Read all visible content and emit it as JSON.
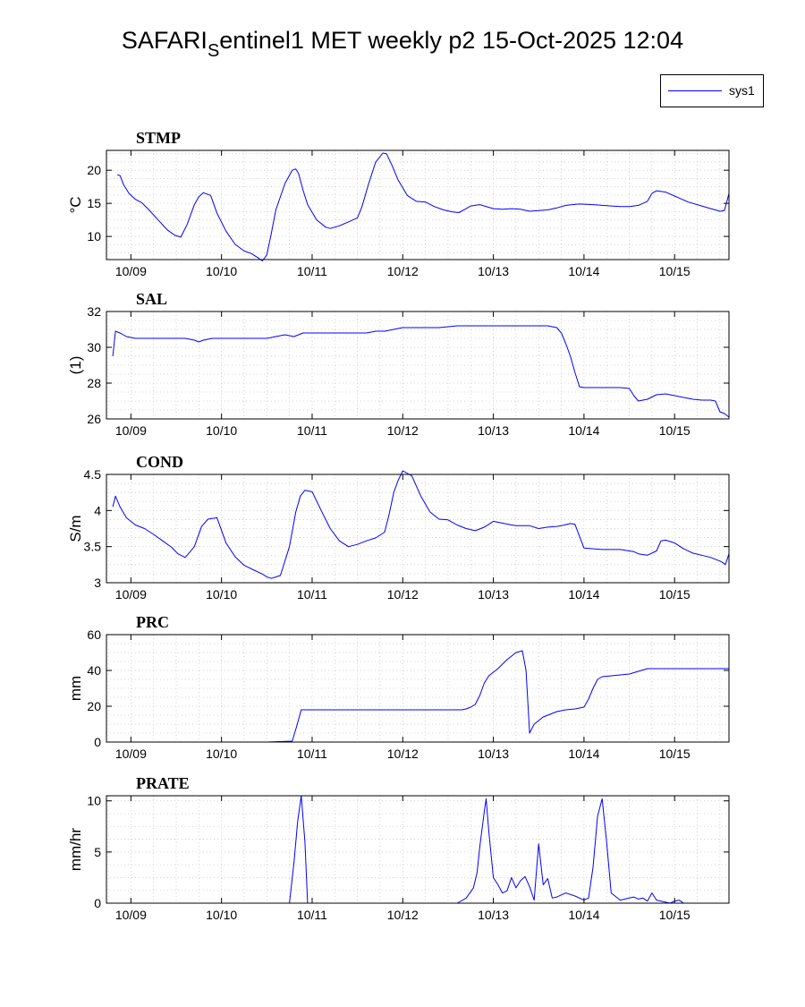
{
  "figure": {
    "title_prefix": "SAFARI",
    "title_sub": "S",
    "title_suffix": "entinel1 MET weekly p2 15-Oct-2025 12:04",
    "legend_label": "sys1",
    "line_color": "#0000ff"
  },
  "chart_data": [
    {
      "type": "line",
      "title": "STMP",
      "ylabel": "°C",
      "xlim": [
        -0.27,
        6.6
      ],
      "ylim": [
        6.5,
        23
      ],
      "yticks": [
        10,
        15,
        20
      ],
      "ytick_labels": [
        "10",
        "15",
        "20"
      ],
      "xticks": [
        0,
        1,
        2,
        3,
        4,
        5,
        6
      ],
      "xtick_labels": [
        "10/09",
        "10/10",
        "10/11",
        "10/12",
        "10/13",
        "10/14",
        "10/15"
      ],
      "grid": true,
      "series": [
        {
          "name": "sys1",
          "x": [
            -0.15,
            -0.12,
            -0.08,
            -0.02,
            0.05,
            0.12,
            0.2,
            0.3,
            0.4,
            0.48,
            0.55,
            0.62,
            0.7,
            0.75,
            0.8,
            0.88,
            0.95,
            1.05,
            1.15,
            1.25,
            1.33,
            1.4,
            1.45,
            1.5,
            1.55,
            1.6,
            1.7,
            1.78,
            1.82,
            1.85,
            1.9,
            1.95,
            2.05,
            2.15,
            2.2,
            2.3,
            2.4,
            2.5,
            2.55,
            2.62,
            2.7,
            2.78,
            2.82,
            2.88,
            2.95,
            3.05,
            3.15,
            3.25,
            3.35,
            3.45,
            3.55,
            3.62,
            3.7,
            3.75,
            3.85,
            4.0,
            4.1,
            4.2,
            4.3,
            4.4,
            4.5,
            4.6,
            4.7,
            4.8,
            4.95,
            5.1,
            5.2,
            5.3,
            5.4,
            5.5,
            5.6,
            5.65,
            5.7,
            5.75,
            5.8,
            5.9,
            6.0,
            6.15,
            6.3,
            6.4,
            6.45,
            6.5,
            6.55,
            6.6
          ],
          "y": [
            19.3,
            19.2,
            17.8,
            16.5,
            15.6,
            15.1,
            14.0,
            12.5,
            11.0,
            10.2,
            9.9,
            11.8,
            14.8,
            16.0,
            16.6,
            16.2,
            13.5,
            10.8,
            8.8,
            7.8,
            7.4,
            6.8,
            6.3,
            7.2,
            10.5,
            14.0,
            18.0,
            20.0,
            20.2,
            19.5,
            17.0,
            14.8,
            12.5,
            11.4,
            11.2,
            11.6,
            12.2,
            12.8,
            14.5,
            17.8,
            21.2,
            22.6,
            22.5,
            20.8,
            18.5,
            16.2,
            15.3,
            15.2,
            14.5,
            14.0,
            13.7,
            13.6,
            14.2,
            14.6,
            14.8,
            14.2,
            14.1,
            14.2,
            14.1,
            13.8,
            13.9,
            14.0,
            14.3,
            14.7,
            14.9,
            14.8,
            14.7,
            14.6,
            14.5,
            14.5,
            14.7,
            15.0,
            15.3,
            16.5,
            16.9,
            16.7,
            16.1,
            15.2,
            14.6,
            14.2,
            14.0,
            13.8,
            13.9,
            16.5
          ]
        }
      ]
    },
    {
      "type": "line",
      "title": "SAL",
      "ylabel": "(1)",
      "xlim": [
        -0.27,
        6.6
      ],
      "ylim": [
        26,
        32
      ],
      "yticks": [
        26,
        28,
        30,
        32
      ],
      "ytick_labels": [
        "26",
        "28",
        "30",
        "32"
      ],
      "xticks": [
        0,
        1,
        2,
        3,
        4,
        5,
        6
      ],
      "xtick_labels": [
        "10/09",
        "10/10",
        "10/11",
        "10/12",
        "10/13",
        "10/14",
        "10/15"
      ],
      "grid": true,
      "series": [
        {
          "name": "sys1",
          "x": [
            -0.2,
            -0.17,
            -0.12,
            -0.05,
            0.05,
            0.2,
            0.4,
            0.6,
            0.7,
            0.75,
            0.8,
            0.9,
            1.0,
            1.2,
            1.4,
            1.5,
            1.6,
            1.7,
            1.8,
            1.9,
            2.0,
            2.2,
            2.4,
            2.6,
            2.7,
            2.8,
            2.9,
            3.0,
            3.2,
            3.4,
            3.6,
            3.8,
            4.0,
            4.2,
            4.4,
            4.6,
            4.7,
            4.75,
            4.8,
            4.85,
            4.9,
            4.95,
            5.0,
            5.2,
            5.4,
            5.5,
            5.55,
            5.6,
            5.7,
            5.8,
            5.9,
            6.0,
            6.1,
            6.2,
            6.3,
            6.4,
            6.45,
            6.5,
            6.55,
            6.6
          ],
          "y": [
            29.5,
            30.9,
            30.8,
            30.6,
            30.5,
            30.5,
            30.5,
            30.5,
            30.4,
            30.3,
            30.4,
            30.5,
            30.5,
            30.5,
            30.5,
            30.5,
            30.6,
            30.7,
            30.6,
            30.8,
            30.8,
            30.8,
            30.8,
            30.8,
            30.9,
            30.9,
            31.0,
            31.1,
            31.1,
            31.1,
            31.2,
            31.2,
            31.2,
            31.2,
            31.2,
            31.2,
            31.1,
            30.8,
            30.2,
            29.5,
            28.6,
            27.8,
            27.75,
            27.75,
            27.75,
            27.7,
            27.3,
            27.0,
            27.1,
            27.35,
            27.4,
            27.3,
            27.2,
            27.1,
            27.05,
            27.05,
            27.0,
            26.4,
            26.3,
            26.1
          ]
        }
      ]
    },
    {
      "type": "line",
      "title": "COND",
      "ylabel": "S/m",
      "xlim": [
        -0.27,
        6.6
      ],
      "ylim": [
        3,
        4.5
      ],
      "yticks": [
        3,
        3.5,
        4,
        4.5
      ],
      "ytick_labels": [
        "3",
        "3.5",
        "4",
        "4.5"
      ],
      "xticks": [
        0,
        1,
        2,
        3,
        4,
        5,
        6
      ],
      "xtick_labels": [
        "10/09",
        "10/10",
        "10/11",
        "10/12",
        "10/13",
        "10/14",
        "10/15"
      ],
      "grid": true,
      "series": [
        {
          "name": "sys1",
          "x": [
            -0.2,
            -0.17,
            -0.12,
            -0.05,
            0.05,
            0.15,
            0.25,
            0.35,
            0.45,
            0.52,
            0.6,
            0.7,
            0.78,
            0.85,
            0.95,
            1.05,
            1.15,
            1.25,
            1.35,
            1.45,
            1.5,
            1.55,
            1.65,
            1.75,
            1.82,
            1.87,
            1.92,
            2.0,
            2.1,
            2.2,
            2.3,
            2.4,
            2.5,
            2.6,
            2.7,
            2.8,
            2.85,
            2.9,
            2.95,
            3.0,
            3.1,
            3.2,
            3.3,
            3.4,
            3.5,
            3.6,
            3.7,
            3.8,
            3.9,
            4.0,
            4.2,
            4.25,
            4.3,
            4.4,
            4.5,
            4.6,
            4.7,
            4.75,
            4.85,
            4.9,
            5.0,
            5.2,
            5.4,
            5.5,
            5.55,
            5.6,
            5.7,
            5.8,
            5.85,
            5.9,
            6.0,
            6.1,
            6.2,
            6.3,
            6.4,
            6.5,
            6.53,
            6.56,
            6.6
          ],
          "y": [
            4.05,
            4.2,
            4.05,
            3.9,
            3.8,
            3.75,
            3.67,
            3.58,
            3.49,
            3.4,
            3.35,
            3.5,
            3.78,
            3.88,
            3.9,
            3.55,
            3.36,
            3.24,
            3.18,
            3.12,
            3.08,
            3.06,
            3.1,
            3.5,
            3.98,
            4.2,
            4.28,
            4.26,
            4.0,
            3.75,
            3.58,
            3.5,
            3.53,
            3.58,
            3.62,
            3.7,
            3.95,
            4.25,
            4.42,
            4.55,
            4.48,
            4.2,
            3.98,
            3.88,
            3.87,
            3.8,
            3.75,
            3.72,
            3.77,
            3.85,
            3.8,
            3.79,
            3.79,
            3.79,
            3.75,
            3.77,
            3.78,
            3.79,
            3.82,
            3.81,
            3.48,
            3.46,
            3.46,
            3.44,
            3.43,
            3.4,
            3.38,
            3.44,
            3.58,
            3.59,
            3.55,
            3.47,
            3.41,
            3.38,
            3.35,
            3.3,
            3.28,
            3.25,
            3.4
          ]
        }
      ]
    },
    {
      "type": "line",
      "title": "PRC",
      "ylabel": "mm",
      "xlim": [
        -0.27,
        6.6
      ],
      "ylim": [
        0,
        60
      ],
      "yticks": [
        0,
        20,
        40,
        60
      ],
      "ytick_labels": [
        "0",
        "20",
        "40",
        "60"
      ],
      "xticks": [
        0,
        1,
        2,
        3,
        4,
        5,
        6
      ],
      "xtick_labels": [
        "10/09",
        "10/10",
        "10/11",
        "10/12",
        "10/13",
        "10/14",
        "10/15"
      ],
      "grid": true,
      "series": [
        {
          "name": "sys1",
          "x": [
            -0.2,
            0.5,
            1.0,
            1.5,
            1.78,
            1.83,
            1.88,
            2.0,
            2.5,
            3.0,
            3.5,
            3.65,
            3.7,
            3.75,
            3.8,
            3.85,
            3.9,
            3.95,
            4.05,
            4.15,
            4.2,
            4.25,
            4.32,
            4.36,
            4.4,
            4.45,
            4.5,
            4.55,
            4.6,
            4.7,
            4.8,
            4.9,
            5.0,
            5.05,
            5.1,
            5.15,
            5.2,
            5.3,
            5.4,
            5.5,
            5.6,
            5.7,
            5.8,
            6.0,
            6.3,
            6.6
          ],
          "y": [
            0,
            0,
            0,
            0,
            0.5,
            9,
            18,
            18,
            18,
            18,
            18,
            18,
            18.5,
            19.5,
            21,
            26,
            33,
            37,
            41,
            46,
            48,
            50,
            51,
            40,
            5,
            10,
            12,
            14,
            15,
            17,
            18,
            18.5,
            19.5,
            24,
            30,
            35,
            36.5,
            37,
            37.5,
            38,
            39.5,
            41,
            41,
            41,
            41,
            41
          ]
        }
      ]
    },
    {
      "type": "line",
      "title": "PRATE",
      "ylabel": "mm/hr",
      "xlim": [
        -0.27,
        6.6
      ],
      "ylim": [
        0,
        10.5
      ],
      "yticks": [
        0,
        5,
        10
      ],
      "ytick_labels": [
        "0",
        "5",
        "10"
      ],
      "xticks": [
        0,
        1,
        2,
        3,
        4,
        5,
        6
      ],
      "xtick_labels": [
        "10/09",
        "10/10",
        "10/11",
        "10/12",
        "10/13",
        "10/14",
        "10/15"
      ],
      "grid": true,
      "series": [
        {
          "name": "sys1",
          "x": [
            -0.2,
            1.0,
            1.75,
            1.8,
            1.84,
            1.88,
            1.92,
            1.95,
            2.5,
            3.0,
            3.6,
            3.7,
            3.78,
            3.82,
            3.85,
            3.9,
            3.92,
            3.95,
            4.0,
            4.05,
            4.1,
            4.15,
            4.2,
            4.25,
            4.3,
            4.35,
            4.4,
            4.45,
            4.5,
            4.55,
            4.6,
            4.65,
            4.7,
            4.8,
            4.9,
            5.0,
            5.05,
            5.1,
            5.15,
            5.2,
            5.25,
            5.3,
            5.4,
            5.5,
            5.55,
            5.6,
            5.65,
            5.7,
            5.75,
            5.8,
            5.95,
            6.0,
            6.05,
            6.1,
            6.6
          ],
          "y": [
            0,
            0,
            0,
            4,
            8,
            10.5,
            6,
            0,
            0,
            0,
            0,
            0.5,
            1.5,
            3,
            5.5,
            9,
            10.2,
            7,
            2.5,
            1.8,
            1.0,
            1.2,
            2.5,
            1.5,
            2.2,
            2.6,
            1.6,
            0.3,
            5.8,
            1.8,
            2.4,
            0.5,
            0.6,
            1.0,
            0.7,
            0.3,
            0.5,
            3.5,
            8.5,
            10.2,
            6,
            1.0,
            0.3,
            0.5,
            0.6,
            0.4,
            0.5,
            0.2,
            1.0,
            0.3,
            0,
            0.2,
            0.3,
            0,
            0
          ]
        }
      ]
    }
  ]
}
